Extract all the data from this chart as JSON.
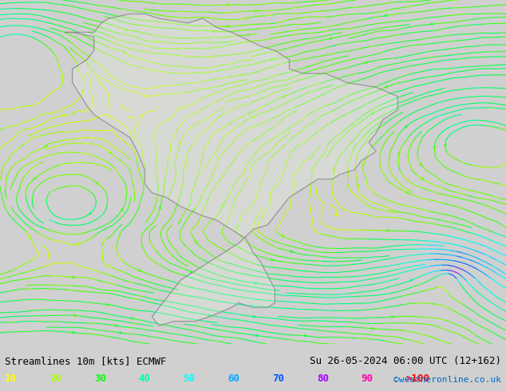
{
  "title_left": "Streamlines 10m [kts] ECMWF",
  "title_right": "Su 26-05-2024 06:00 UTC (12+162)",
  "watermark": "©weatheronline.co.uk",
  "legend_values": [
    "10",
    "20",
    "30",
    "40",
    "50",
    "60",
    "70",
    "80",
    "90",
    ">100"
  ],
  "legend_colors": [
    "#ffff00",
    "#aaff00",
    "#00ff00",
    "#00ffaa",
    "#00ffff",
    "#00aaff",
    "#0055ff",
    "#aa00ff",
    "#ff00aa",
    "#ff0000"
  ],
  "bg_color": "#e8e8e8",
  "map_bg": "#f0f0f0",
  "figsize": [
    6.34,
    4.9
  ],
  "dpi": 100,
  "streamline_colors": {
    "calm": "#ffff00",
    "light": "#aaff00",
    "moderate": "#00ff00",
    "fresh": "#00ffcc",
    "strong": "#00ffff",
    "gale": "#00aaff",
    "storm": "#aa00ff"
  }
}
